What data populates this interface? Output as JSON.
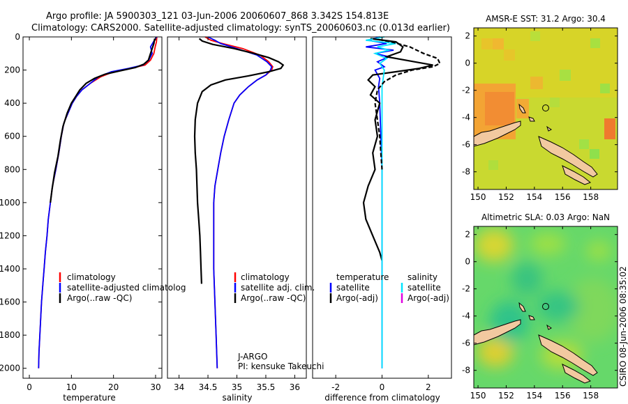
{
  "header": {
    "line1": "Argo profile: JA 5900303_121 03-Jun-2006 20060607_868 3.342S 154.813E",
    "line2": "Climatology: CARS2000. Satellite-adjusted climatology: synTS_20060603.nc (0.013d earlier)"
  },
  "side_stamp": "CSIRO 08-Jun-2006 08:35:02",
  "colors": {
    "climatology": "#ff0000",
    "satellite": "#0000ff",
    "argo": "#000000",
    "satellite_diff": "#00e5ff",
    "argo_adj_salinity": "#e000e0",
    "map_land": "#f2c9a0"
  },
  "chart_data": [
    {
      "type": "line",
      "id": "temperature",
      "xlabel": "temperature",
      "ylabel": "",
      "xlim": [
        -1.5,
        31.5
      ],
      "ylim": [
        2060,
        0
      ],
      "xticks": [
        0,
        10,
        20,
        30
      ],
      "yticks": [
        0,
        200,
        400,
        600,
        800,
        1000,
        1200,
        1400,
        1600,
        1800,
        2000
      ],
      "legend": [
        "climatology",
        "satellite-adjusted climatology",
        "Argo(..raw -QC)"
      ],
      "legend_display": [
        "climatology",
        "satellite-adjusted climatolog",
        "Argo(..raw -QC)"
      ],
      "series": [
        {
          "name": "climatology",
          "color": "#ff0000",
          "points": [
            [
              30.3,
              0
            ],
            [
              30.2,
              30
            ],
            [
              29.9,
              60
            ],
            [
              29.6,
              100
            ],
            [
              28.8,
              140
            ],
            [
              27.5,
              170
            ],
            [
              24,
              190
            ],
            [
              20,
              210
            ],
            [
              17,
              240
            ],
            [
              14.5,
              280
            ],
            [
              12.5,
              320
            ],
            [
              11.2,
              360
            ],
            [
              10.2,
              400
            ],
            [
              9.2,
              460
            ],
            [
              8.2,
              520
            ],
            [
              7.6,
              600
            ],
            [
              7,
              700
            ],
            [
              6.3,
              800
            ],
            [
              5.5,
              900
            ],
            [
              5,
              1000
            ],
            [
              4.5,
              1100
            ],
            [
              4.2,
              1200
            ],
            [
              3.8,
              1300
            ],
            [
              3.5,
              1400
            ],
            [
              3.2,
              1500
            ],
            [
              2.9,
              1600
            ],
            [
              2.7,
              1700
            ],
            [
              2.5,
              1800
            ],
            [
              2.3,
              1900
            ],
            [
              2.2,
              2000
            ]
          ]
        },
        {
          "name": "satellite-adjusted climatology",
          "color": "#0000ff",
          "points": [
            [
              30.2,
              0
            ],
            [
              29.5,
              30
            ],
            [
              28.8,
              60
            ],
            [
              29.2,
              100
            ],
            [
              28.4,
              140
            ],
            [
              27,
              170
            ],
            [
              23.5,
              190
            ],
            [
              19.5,
              210
            ],
            [
              16.5,
              240
            ],
            [
              14.5,
              280
            ],
            [
              12.5,
              320
            ],
            [
              11.2,
              360
            ],
            [
              10.2,
              400
            ],
            [
              9.2,
              460
            ],
            [
              8.2,
              520
            ],
            [
              7.6,
              600
            ],
            [
              7,
              700
            ],
            [
              6.3,
              800
            ],
            [
              5.5,
              900
            ],
            [
              5,
              1000
            ],
            [
              4.5,
              1100
            ],
            [
              4.2,
              1200
            ],
            [
              3.8,
              1300
            ],
            [
              3.5,
              1400
            ],
            [
              3.2,
              1500
            ],
            [
              2.9,
              1600
            ],
            [
              2.7,
              1700
            ],
            [
              2.5,
              1800
            ],
            [
              2.3,
              1900
            ],
            [
              2.2,
              2000
            ]
          ]
        },
        {
          "name": "Argo(..raw -QC)",
          "color": "#000000",
          "points": [
            [
              29.8,
              10
            ],
            [
              29.6,
              40
            ],
            [
              29.2,
              70
            ],
            [
              28.8,
              100
            ],
            [
              28.3,
              140
            ],
            [
              27.2,
              165
            ],
            [
              25.2,
              185
            ],
            [
              21.5,
              205
            ],
            [
              18,
              225
            ],
            [
              15.5,
              250
            ],
            [
              13.5,
              280
            ],
            [
              12,
              320
            ],
            [
              11,
              360
            ],
            [
              10,
              400
            ],
            [
              9,
              460
            ],
            [
              8,
              540
            ],
            [
              7.4,
              620
            ],
            [
              6.8,
              720
            ],
            [
              6,
              820
            ],
            [
              5.4,
              920
            ],
            [
              5,
              1000
            ]
          ]
        }
      ]
    },
    {
      "type": "line",
      "id": "salinity",
      "xlabel": "salinity",
      "xlim": [
        33.8,
        36.2
      ],
      "ylim": [
        2060,
        0
      ],
      "xticks": [
        34,
        34.5,
        35,
        35.5,
        36
      ],
      "legend": [
        "climatology",
        "satellite adj. clim.",
        "Argo(..raw -QC)"
      ],
      "annotation": [
        "J-ARGO",
        "PI: kensuke Takeuchi"
      ],
      "series": [
        {
          "name": "climatology",
          "color": "#ff0000",
          "points": [
            [
              34.45,
              0
            ],
            [
              34.55,
              20
            ],
            [
              34.75,
              40
            ],
            [
              35.1,
              70
            ],
            [
              35.4,
              110
            ],
            [
              35.55,
              150
            ],
            [
              35.62,
              180
            ],
            [
              35.6,
              200
            ],
            [
              35.5,
              230
            ],
            [
              35.35,
              260
            ],
            [
              35.2,
              300
            ],
            [
              35.05,
              350
            ],
            [
              34.95,
              400
            ],
            [
              34.86,
              500
            ],
            [
              34.78,
              600
            ],
            [
              34.72,
              700
            ],
            [
              34.67,
              800
            ],
            [
              34.62,
              900
            ],
            [
              34.6,
              1000
            ],
            [
              34.6,
              1200
            ],
            [
              34.6,
              1400
            ],
            [
              34.62,
              1600
            ],
            [
              34.64,
              1800
            ],
            [
              34.66,
              2000
            ]
          ]
        },
        {
          "name": "satellite adj. clim.",
          "color": "#0000ff",
          "points": [
            [
              34.5,
              0
            ],
            [
              34.62,
              20
            ],
            [
              34.72,
              40
            ],
            [
              35.0,
              70
            ],
            [
              35.35,
              110
            ],
            [
              35.52,
              150
            ],
            [
              35.6,
              180
            ],
            [
              35.58,
              200
            ],
            [
              35.5,
              230
            ],
            [
              35.35,
              260
            ],
            [
              35.2,
              300
            ],
            [
              35.05,
              350
            ],
            [
              34.95,
              400
            ],
            [
              34.86,
              500
            ],
            [
              34.78,
              600
            ],
            [
              34.72,
              700
            ],
            [
              34.67,
              800
            ],
            [
              34.62,
              900
            ],
            [
              34.6,
              1000
            ],
            [
              34.6,
              1200
            ],
            [
              34.6,
              1400
            ],
            [
              34.62,
              1600
            ],
            [
              34.64,
              1800
            ],
            [
              34.66,
              2000
            ]
          ]
        },
        {
          "name": "Argo(..raw -QC)",
          "color": "#000000",
          "points": [
            [
              34.35,
              10
            ],
            [
              34.4,
              25
            ],
            [
              34.58,
              45
            ],
            [
              34.95,
              70
            ],
            [
              35.3,
              100
            ],
            [
              35.55,
              125
            ],
            [
              35.72,
              150
            ],
            [
              35.8,
              170
            ],
            [
              35.76,
              190
            ],
            [
              35.55,
              210
            ],
            [
              35.2,
              235
            ],
            [
              34.8,
              260
            ],
            [
              34.55,
              290
            ],
            [
              34.4,
              330
            ],
            [
              34.32,
              400
            ],
            [
              34.28,
              500
            ],
            [
              34.27,
              600
            ],
            [
              34.28,
              700
            ],
            [
              34.3,
              800
            ],
            [
              34.31,
              900
            ],
            [
              34.32,
              1000
            ],
            [
              34.34,
              1100
            ],
            [
              34.36,
              1200
            ],
            [
              34.37,
              1300
            ],
            [
              34.38,
              1400
            ],
            [
              34.39,
              1490
            ]
          ]
        }
      ]
    },
    {
      "type": "line",
      "id": "difference",
      "xlabel": "difference from climatology",
      "xlim": [
        -3,
        3
      ],
      "ylim": [
        2060,
        0
      ],
      "xticks": [
        -2,
        0,
        2
      ],
      "legend": [
        "temperature",
        "satellite",
        "Argo(-adj)",
        "salinity",
        "satellite",
        "Argo(-adj)"
      ],
      "series": [
        {
          "name": "temperature satellite",
          "color": "#0000ff",
          "points": [
            [
              -0.1,
              0
            ],
            [
              -0.6,
              20
            ],
            [
              0.2,
              40
            ],
            [
              -0.7,
              60
            ],
            [
              0.5,
              80
            ],
            [
              -0.3,
              100
            ],
            [
              0.3,
              120
            ],
            [
              -0.2,
              150
            ],
            [
              0.1,
              180
            ],
            [
              -0.3,
              200
            ],
            [
              -0.1,
              250
            ],
            [
              -0.15,
              300
            ],
            [
              -0.1,
              400
            ],
            [
              -0.05,
              600
            ],
            [
              0,
              800
            ],
            [
              0,
              1000
            ],
            [
              0,
              1400
            ],
            [
              0,
              2000
            ]
          ]
        },
        {
          "name": "temperature Argo(-adj)",
          "color": "#000000",
          "points": [
            [
              -0.5,
              10
            ],
            [
              0.6,
              30
            ],
            [
              0.9,
              60
            ],
            [
              0.8,
              90
            ],
            [
              0.2,
              120
            ],
            [
              1.4,
              150
            ],
            [
              2.2,
              170
            ],
            [
              1.6,
              190
            ],
            [
              0.6,
              210
            ],
            [
              -0.4,
              230
            ],
            [
              -0.6,
              260
            ],
            [
              -0.3,
              300
            ],
            [
              -0.5,
              350
            ],
            [
              -0.1,
              400
            ],
            [
              -0.3,
              500
            ],
            [
              -0.2,
              600
            ],
            [
              -0.4,
              700
            ],
            [
              -0.3,
              800
            ],
            [
              -0.6,
              900
            ],
            [
              -0.8,
              1000
            ],
            [
              -0.7,
              1100
            ],
            [
              -0.4,
              1200
            ],
            [
              -0.1,
              1300
            ],
            [
              0,
              1350
            ]
          ]
        },
        {
          "name": "salinity satellite",
          "color": "#00e5ff",
          "points": [
            [
              0.1,
              0
            ],
            [
              -0.7,
              20
            ],
            [
              0.6,
              40
            ],
            [
              -0.2,
              60
            ],
            [
              0.3,
              80
            ],
            [
              -0.3,
              100
            ],
            [
              0.2,
              130
            ],
            [
              -0.1,
              160
            ],
            [
              0.1,
              200
            ],
            [
              0,
              300
            ],
            [
              0,
              600
            ],
            [
              0,
              1000
            ],
            [
              0,
              1500
            ],
            [
              0,
              2000
            ]
          ]
        },
        {
          "name": "salinity Argo(-adj)",
          "color": "#000000",
          "dashed": true,
          "points": [
            [
              -0.4,
              10
            ],
            [
              0.4,
              30
            ],
            [
              1.2,
              60
            ],
            [
              1.8,
              100
            ],
            [
              2.4,
              130
            ],
            [
              2.5,
              160
            ],
            [
              2.2,
              180
            ],
            [
              1.3,
              200
            ],
            [
              0.6,
              230
            ],
            [
              0.1,
              270
            ],
            [
              -0.2,
              320
            ],
            [
              -0.3,
              400
            ],
            [
              -0.2,
              500
            ],
            [
              -0.1,
              600
            ],
            [
              -0.05,
              700
            ],
            [
              0,
              800
            ]
          ]
        }
      ]
    },
    {
      "type": "heatmap",
      "id": "sst-map",
      "title": "AMSR-E SST: 31.2 Argo: 30.4",
      "xlim": [
        149.7,
        159.9
      ],
      "ylim": [
        -9.3,
        2.6
      ],
      "xticks": [
        150,
        152,
        154,
        156,
        158
      ],
      "yticks": [
        2,
        0,
        -2,
        -4,
        -6,
        -8
      ],
      "marker": {
        "lon": 154.8,
        "lat": -3.3
      }
    },
    {
      "type": "heatmap",
      "id": "sla-map",
      "title": "Altimetric SLA: 0.03 Argo: NaN",
      "xlim": [
        149.7,
        159.9
      ],
      "ylim": [
        -9.3,
        2.6
      ],
      "xticks": [
        150,
        152,
        154,
        156,
        158
      ],
      "yticks": [
        2,
        0,
        -2,
        -4,
        -6,
        -8
      ],
      "marker": {
        "lon": 154.8,
        "lat": -3.3
      }
    }
  ]
}
